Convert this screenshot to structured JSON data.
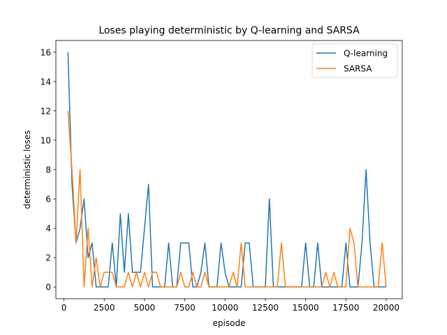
{
  "chart_data": {
    "type": "line",
    "title": "Loses playing deterministic by Q-learning and SARSA",
    "xlabel": "episode",
    "ylabel": "deterministic loses",
    "xlim": [
      -500,
      21000
    ],
    "ylim": [
      -0.8,
      16.8
    ],
    "xticks": [
      0,
      2500,
      5000,
      7500,
      10000,
      12500,
      15000,
      17500,
      20000
    ],
    "yticks": [
      0,
      2,
      4,
      6,
      8,
      10,
      12,
      14,
      16
    ],
    "grid": false,
    "legend_position": "top-right",
    "x": [
      250,
      500,
      750,
      1000,
      1250,
      1500,
      1750,
      2000,
      2250,
      2500,
      2750,
      3000,
      3250,
      3500,
      3750,
      4000,
      4250,
      4500,
      4750,
      5000,
      5250,
      5500,
      5750,
      6000,
      6250,
      6500,
      6750,
      7000,
      7250,
      7500,
      7750,
      8000,
      8250,
      8500,
      8750,
      9000,
      9250,
      9500,
      9750,
      10000,
      10250,
      10500,
      10750,
      11000,
      11250,
      11500,
      11750,
      12000,
      12250,
      12500,
      12750,
      13000,
      13250,
      13500,
      13750,
      14000,
      14250,
      14500,
      14750,
      15000,
      15250,
      15500,
      15750,
      16000,
      16250,
      16500,
      16750,
      17000,
      17250,
      17500,
      17750,
      18000,
      18250,
      18500,
      18750,
      19000,
      19250,
      19500,
      19750,
      20000
    ],
    "series": [
      {
        "name": "Q-learning",
        "color": "#1f77b4",
        "values": [
          16,
          7,
          3,
          4,
          6,
          2,
          3,
          0,
          0,
          0,
          0,
          3,
          0,
          5,
          1,
          5,
          1,
          1,
          1,
          4,
          7,
          0,
          0,
          0,
          0,
          3,
          0,
          0,
          3,
          3,
          3,
          0,
          0,
          1,
          3,
          0,
          0,
          0,
          3,
          1,
          0,
          0,
          0,
          0,
          3,
          3,
          0,
          0,
          0,
          0,
          6,
          0,
          0,
          0,
          0,
          0,
          0,
          0,
          0,
          3,
          0,
          0,
          3,
          0,
          0,
          0,
          0,
          0,
          0,
          3,
          0,
          0,
          0,
          3,
          8,
          3,
          0,
          0,
          0,
          0
        ]
      },
      {
        "name": "SARSA",
        "color": "#ff7f0e",
        "values": [
          12,
          8,
          3,
          8,
          0,
          4,
          0,
          2,
          0,
          1,
          1,
          1,
          0,
          0,
          0,
          1,
          0,
          1,
          0,
          1,
          0,
          1,
          1,
          0,
          0,
          0,
          0,
          0,
          1,
          0,
          0,
          1,
          0,
          0,
          1,
          0,
          0,
          0,
          0,
          0,
          0,
          1,
          0,
          3,
          0,
          0,
          0,
          0,
          0,
          0,
          0,
          0,
          0,
          3,
          0,
          0,
          0,
          0,
          0,
          0,
          0,
          0,
          0,
          0,
          1,
          0,
          1,
          0,
          0,
          0,
          4,
          3,
          0,
          0,
          0,
          0,
          0,
          0,
          3,
          0
        ]
      }
    ]
  }
}
